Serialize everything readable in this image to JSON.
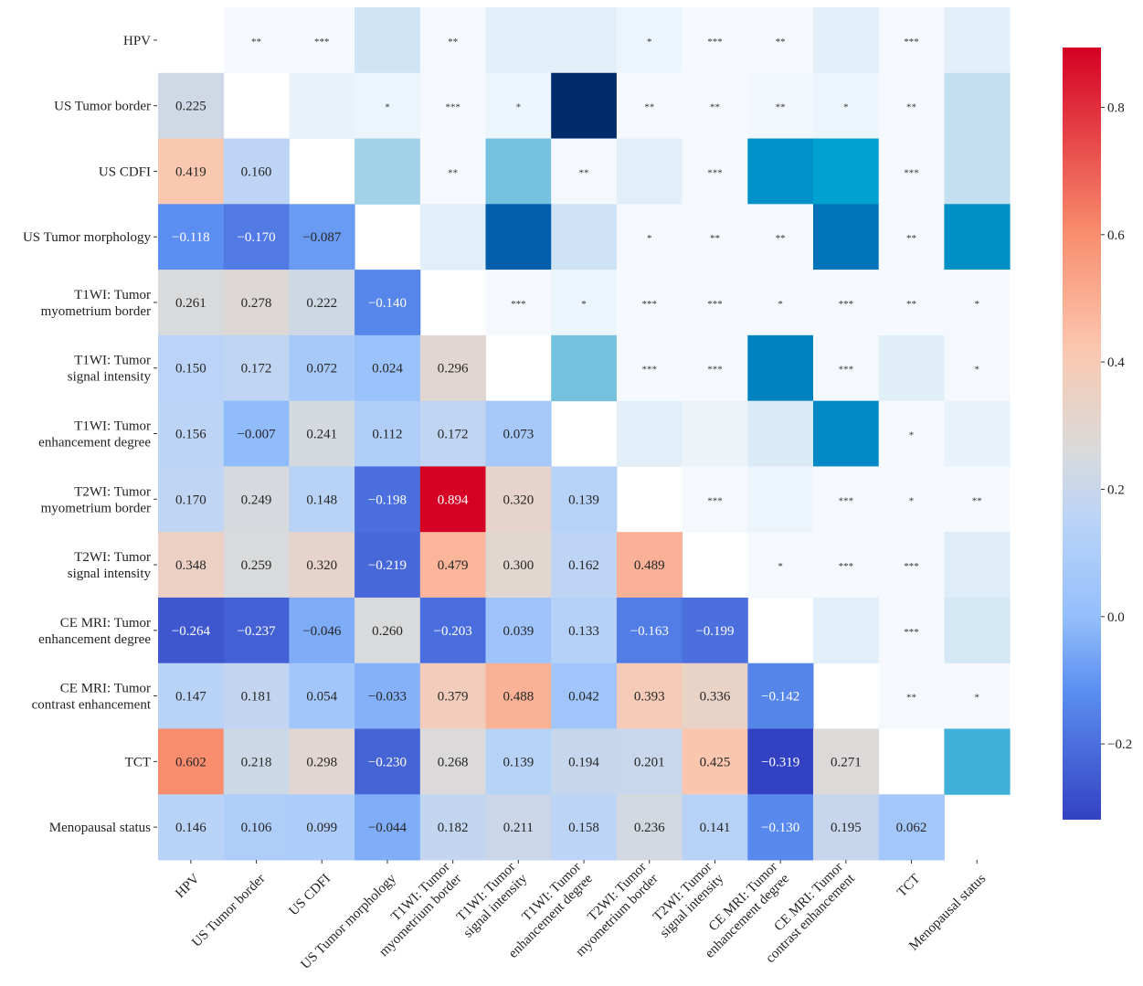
{
  "chart_data": {
    "type": "heatmap",
    "title": "",
    "labels": [
      "HPV",
      "US Tumor border",
      "US CDFI",
      "US Tumor morphology",
      "T1WI: Tumor\nmyometrium border",
      "T1WI: Tumor\nsignal intensity",
      "T1WI: Tumor\nenhancement degree",
      "T2WI: Tumor\nmyometrium border",
      "T2WI: Tumor\nsignal intensity",
      "CE MRI: Tumor\nenhancement degree",
      "CE MRI: Tumor\ncontrast enhancement",
      "TCT",
      "Menopausal status"
    ],
    "lower_values": [
      [],
      [
        0.225
      ],
      [
        0.419,
        0.16
      ],
      [
        -0.118,
        -0.17,
        -0.087
      ],
      [
        0.261,
        0.278,
        0.222,
        -0.14
      ],
      [
        0.15,
        0.172,
        0.072,
        0.024,
        0.296
      ],
      [
        0.156,
        -0.007,
        0.241,
        0.112,
        0.172,
        0.073
      ],
      [
        0.17,
        0.249,
        0.148,
        -0.198,
        0.894,
        0.32,
        0.139
      ],
      [
        0.348,
        0.259,
        0.32,
        -0.219,
        0.479,
        0.3,
        0.162,
        0.489
      ],
      [
        -0.264,
        -0.237,
        -0.046,
        0.26,
        -0.203,
        0.039,
        0.133,
        -0.163,
        -0.199
      ],
      [
        0.147,
        0.181,
        0.054,
        -0.033,
        0.379,
        0.488,
        0.042,
        0.393,
        0.336,
        -0.142
      ],
      [
        0.602,
        0.218,
        0.298,
        -0.23,
        0.268,
        0.139,
        0.194,
        0.201,
        0.425,
        -0.319,
        0.271
      ],
      [
        0.146,
        0.106,
        0.099,
        -0.044,
        0.182,
        0.211,
        0.158,
        0.236,
        0.141,
        -0.13,
        0.195,
        0.062
      ]
    ],
    "upper_stars": [
      [
        "",
        "**",
        "***",
        "",
        "**",
        "",
        "",
        "*",
        "***",
        "**",
        "",
        "***",
        ""
      ],
      [
        "",
        "",
        "",
        "*",
        "***",
        "*",
        "",
        "**",
        "**",
        "**",
        "*",
        "**",
        ""
      ],
      [
        "",
        "",
        "",
        "",
        "**",
        "",
        "**",
        "",
        "***",
        "",
        "",
        "***",
        ""
      ],
      [
        "",
        "",
        "",
        "",
        "",
        "",
        "",
        "*",
        "**",
        "**",
        "",
        "**",
        ""
      ],
      [
        "",
        "",
        "",
        "",
        "",
        "***",
        "*",
        "***",
        "***",
        "*",
        "***",
        "**",
        "*"
      ],
      [
        "",
        "",
        "",
        "",
        "",
        "",
        "",
        "***",
        "***",
        "",
        "***",
        "",
        "*"
      ],
      [
        "",
        "",
        "",
        "",
        "",
        "",
        "",
        "",
        "",
        "",
        "",
        "*",
        ""
      ],
      [
        "",
        "",
        "",
        "",
        "",
        "",
        "",
        "",
        "***",
        "",
        "***",
        "*",
        "**"
      ],
      [
        "",
        "",
        "",
        "",
        "",
        "",
        "",
        "",
        "",
        "*",
        "***",
        "***",
        ""
      ],
      [
        "",
        "",
        "",
        "",
        "",
        "",
        "",
        "",
        "",
        "",
        "",
        "***",
        ""
      ],
      [
        "",
        "",
        "",
        "",
        "",
        "",
        "",
        "",
        "",
        "",
        "",
        "**",
        "*"
      ],
      [
        "",
        "",
        "",
        "",
        "",
        "",
        "",
        "",
        "",
        "",
        "",
        "",
        ""
      ],
      [
        "",
        "",
        "",
        "",
        "",
        "",
        "",
        "",
        "",
        "",
        "",
        "",
        ""
      ]
    ],
    "upper_colors": [
      [
        "",
        "#f5f9fe",
        "#f5f9fe",
        "#cfe4f5",
        "#f5f9fe",
        "#e2eff9",
        "#e2eff9",
        "#ecf4fc",
        "#f5f9fe",
        "#f5f9fe",
        "#e2eff9",
        "#f5f9fe",
        "#e2eff9"
      ],
      [
        "",
        "",
        "#e8f2fb",
        "#ecf4fc",
        "#f5f9fe",
        "#ecf4fc",
        "#002b6b",
        "#f5f9fe",
        "#f5f9fe",
        "#f2f7fd",
        "#ecf4fc",
        "#f5f9fe",
        "#c4dff0"
      ],
      [
        "",
        "",
        "",
        "#a1d2e8",
        "#f5f9fe",
        "#75c2e0",
        "#f5f9fe",
        "#e2eff9",
        "#f5f9fe",
        "#0091c9",
        "#00a2d0",
        "#f5f9fe",
        "#c4dff0"
      ],
      [
        "",
        "",
        "",
        "",
        "#e2eff9",
        "#005ead",
        "#cde3f5",
        "#f5f9fe",
        "#f5f9fe",
        "#f5f9fe",
        "#0073ba",
        "#f5f9fe",
        "#0090c6"
      ],
      [
        "",
        "",
        "",
        "",
        "",
        "#f5f9fe",
        "#ecf4fc",
        "#f5f9fe",
        "#f5f9fe",
        "#f5f9fe",
        "#f5f9fe",
        "#f5f9fe",
        "#f5f9fe"
      ],
      [
        "",
        "",
        "",
        "",
        "",
        "",
        "#75c2e0",
        "#f5f9fe",
        "#f5f9fe",
        "#0083c1",
        "#f5f9fe",
        "#e0eef8",
        "#f5f9fe"
      ],
      [
        "",
        "",
        "",
        "",
        "",
        "",
        "",
        "#e2eff9",
        "#ecf4fa",
        "#dbeaf7",
        "#0089c4",
        "#f5f9fe",
        "#e8f2fb"
      ],
      [
        "",
        "",
        "",
        "",
        "",
        "",
        "",
        "",
        "#f5f9fe",
        "#ecf4fc",
        "#f5f9fe",
        "#f5f9fe",
        "#f5f9fe"
      ],
      [
        "",
        "",
        "",
        "",
        "",
        "",
        "",
        "",
        "",
        "#f5f9fe",
        "#f5f9fe",
        "#f5f9fe",
        "#deedf8"
      ],
      [
        "",
        "",
        "",
        "",
        "",
        "",
        "",
        "",
        "",
        "",
        "#e2eff9",
        "#f5f9fe",
        "#d3e7f5"
      ],
      [
        "",
        "",
        "",
        "",
        "",
        "",
        "",
        "",
        "",
        "",
        "",
        "#f5f9fe",
        "#f5f9fe"
      ],
      [
        "",
        "",
        "",
        "",
        "",
        "",
        "",
        "",
        "",
        "",
        "",
        "",
        "#3fb0d8"
      ],
      [
        "",
        "",
        "",
        "",
        "",
        "",
        "",
        "",
        "",
        "",
        "",
        "",
        ""
      ]
    ],
    "colorbar": {
      "range": [
        -0.319,
        0.894
      ],
      "ticks": [
        "-0.2",
        "0.0",
        "0.2",
        "0.4",
        "0.6",
        "0.8"
      ],
      "tick_values": [
        -0.2,
        0,
        0.2,
        0.4,
        0.6,
        0.8
      ],
      "colormap": "coolwarm",
      "low_color": "#3342c2",
      "mid_color": "#dadada",
      "high_color": "#d50024"
    },
    "legend": "colorbar-right"
  }
}
